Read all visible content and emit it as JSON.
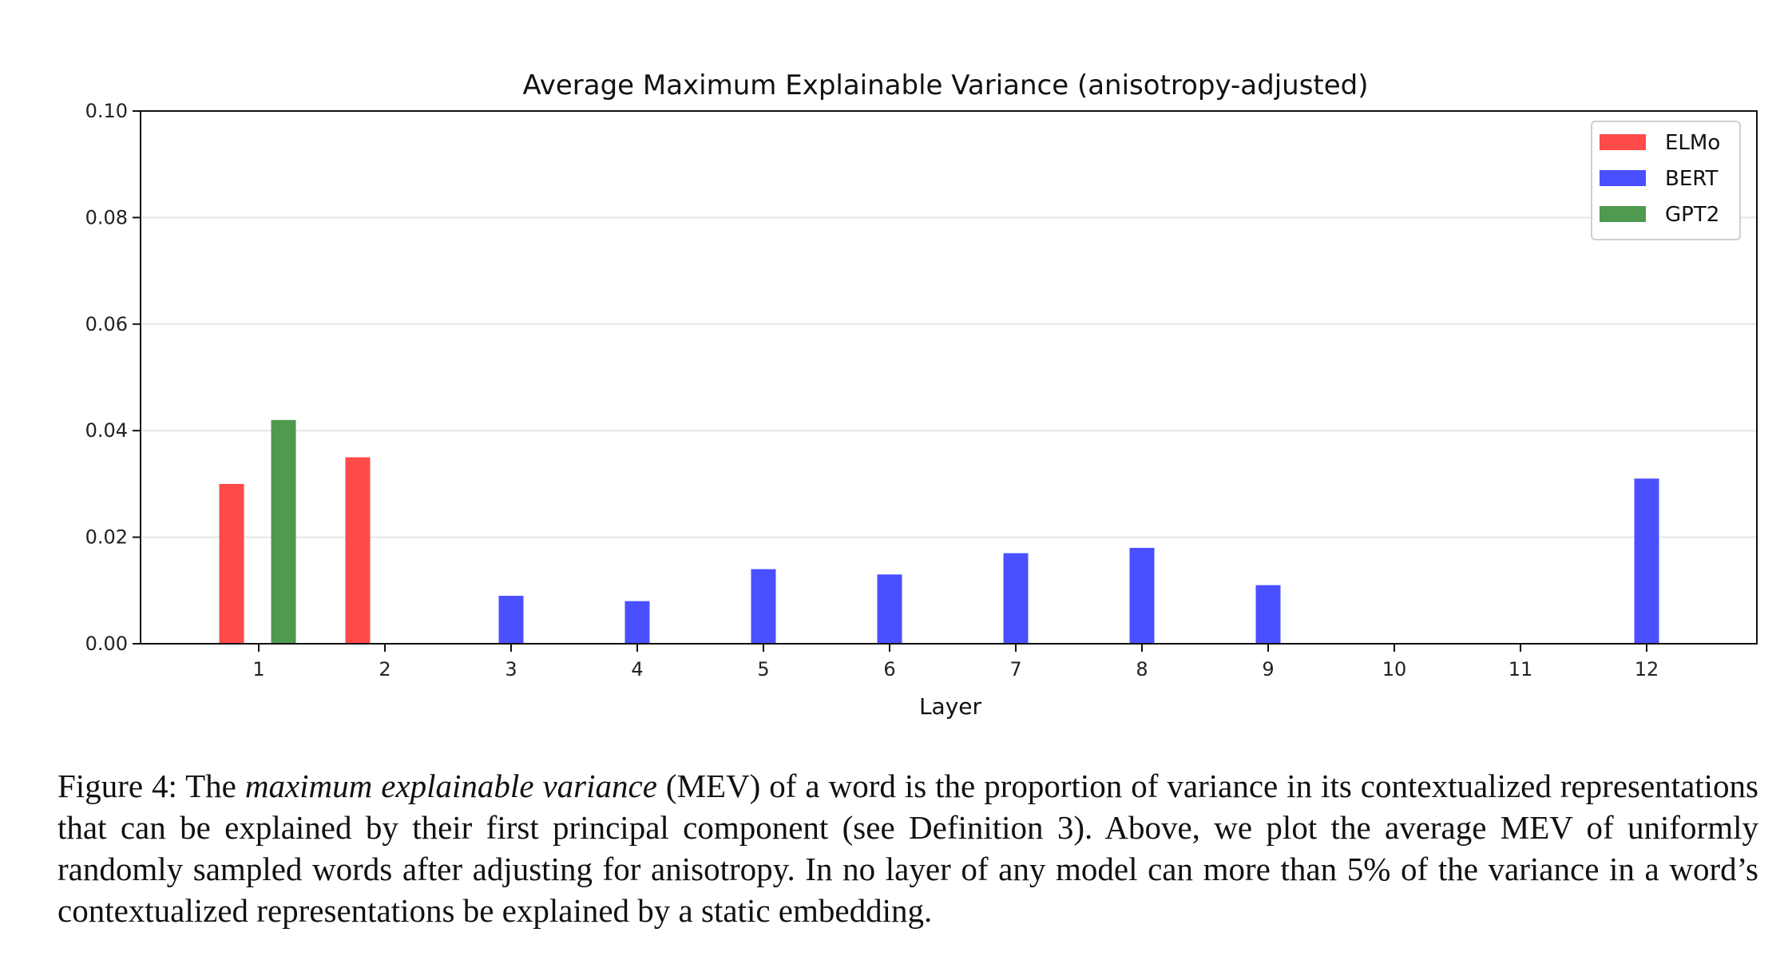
{
  "chart_data": {
    "type": "bar",
    "title": "Average Maximum Explainable Variance (anisotropy-adjusted)",
    "xlabel": "Layer",
    "ylabel": "",
    "categories": [
      "1",
      "2",
      "3",
      "4",
      "5",
      "6",
      "7",
      "8",
      "9",
      "10",
      "11",
      "12"
    ],
    "ylim": [
      0,
      0.1
    ],
    "yticks": [
      "0.00",
      "0.02",
      "0.04",
      "0.06",
      "0.08",
      "0.10"
    ],
    "grid": true,
    "legend_position": "top-right",
    "series": [
      {
        "name": "ELMo",
        "color": "#ff4a4a",
        "values": [
          0.03,
          0.035,
          null,
          null,
          null,
          null,
          null,
          null,
          null,
          null,
          null,
          null
        ]
      },
      {
        "name": "BERT",
        "color": "#4a50ff",
        "values": [
          null,
          null,
          0.009,
          0.008,
          0.014,
          0.013,
          0.017,
          0.018,
          0.011,
          null,
          null,
          0.031
        ]
      },
      {
        "name": "GPT2",
        "color": "#4e9a4e",
        "values": [
          0.042,
          null,
          null,
          null,
          null,
          null,
          null,
          null,
          null,
          null,
          null,
          null
        ]
      }
    ]
  },
  "caption": {
    "label": "Figure 4: The ",
    "emph": "maximum explainable variance",
    "rest": " (MEV) of a word is the proportion of variance in its contextualized representations that can be explained by their first principal component (see Definition 3).  Above, we plot the average MEV of uniformly randomly sampled words after adjusting for anisotropy. In no layer of any model can more than 5% of the variance in a word’s contextualized representations be explained by a static embedding."
  }
}
